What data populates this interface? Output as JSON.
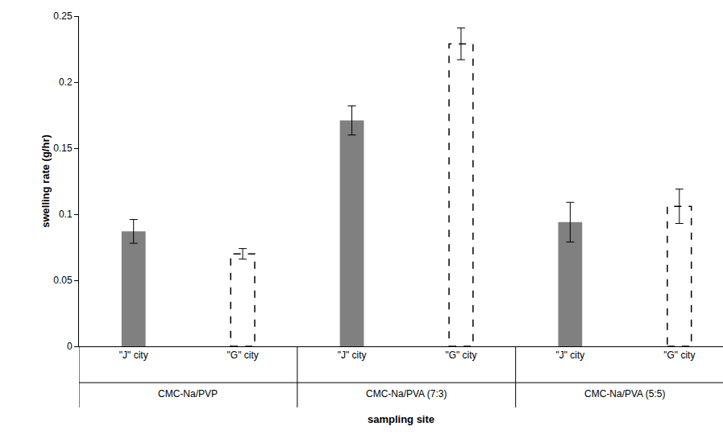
{
  "chart_data": {
    "type": "bar",
    "x_title": "sampling site",
    "y_title": "swelling rate (g/hr)",
    "categories": [
      "CMC-Na/PVP",
      "CMC-Na/PVA (7:3)",
      "CMC-Na/PVA (5:5)"
    ],
    "series": [
      {
        "name": "\"J\" city",
        "color": "#808080",
        "values": [
          0.087,
          0.171,
          0.094
        ],
        "errors": [
          0.009,
          0.011,
          0.015
        ]
      },
      {
        "name": "\"G\" city",
        "color": "#ffffff",
        "line_style": "dashed",
        "values": [
          0.07,
          0.229,
          0.106
        ],
        "errors": [
          0.004,
          0.012,
          0.013
        ]
      }
    ],
    "ylim": [
      0,
      0.25
    ],
    "yticks": [
      0,
      0.05,
      0.1,
      0.15,
      0.2,
      0.25
    ],
    "grid": false
  }
}
